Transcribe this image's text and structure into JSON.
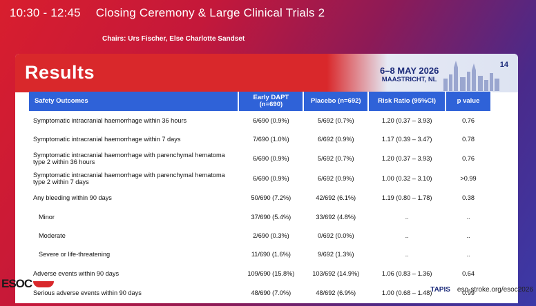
{
  "banner": {
    "time": "10:30 - 12:45",
    "session": "Closing Ceremony & Large Clinical Trials 2",
    "chairs": "Chairs: Urs Fischer, Else Charlotte Sandset"
  },
  "slide": {
    "title": "Results",
    "event_date": "6–8 MAY 2026",
    "event_place": "MAASTRICHT, NL",
    "number": "14"
  },
  "table": {
    "headers": [
      "Safety Outcomes",
      "Early DAPT (n=690)",
      "Placebo (n=692)",
      "Risk Ratio (95%CI)",
      "p value"
    ],
    "rows": [
      [
        "Symptomatic intracranial haemorrhage within 36 hours",
        "6/690 (0.9%)",
        "5/692 (0.7%)",
        "1.20 (0.37 – 3.93)",
        "0.76"
      ],
      [
        "Symptomatic intracranial haemorrhage within 7 days",
        "7/690 (1.0%)",
        "6/692 (0.9%)",
        "1.17 (0.39 – 3.47)",
        "0.78"
      ],
      [
        "Symptomatic intracranial haemorrhage with parenchymal hematoma type 2 within 36 hours",
        "6/690 (0.9%)",
        "5/692 (0.7%)",
        "1.20 (0.37 – 3.93)",
        "0.76"
      ],
      [
        "Symptomatic intracranial haemorrhage with parenchymal hematoma type 2 within 7 days",
        "6/690 (0.9%)",
        "6/692 (0.9%)",
        "1.00 (0.32 – 3.10)",
        ">0.99"
      ],
      [
        "Any bleeding within 90 days",
        "50/690 (7.2%)",
        "42/692 (6.1%)",
        "1.19 (0.80 – 1.78)",
        "0.38"
      ],
      [
        "Minor",
        "37/690 (5.4%)",
        "33/692 (4.8%)",
        "..",
        ".."
      ],
      [
        "Moderate",
        "2/690 (0.3%)",
        "0/692 (0.0%)",
        "..",
        ".."
      ],
      [
        "Severe or life-threatening",
        "11/690 (1.6%)",
        "9/692 (1.3%)",
        "..",
        ".."
      ],
      [
        "Adverse events within 90 days",
        "109/690 (15.8%)",
        "103/692 (14.9%)",
        "1.06 (0.83 – 1.36)",
        "0.64"
      ],
      [
        "Serious adverse events within 90 days",
        "48/690 (7.0%)",
        "48/692 (6.9%)",
        "1.00 (0.68 – 1.48)",
        "0.99"
      ]
    ]
  },
  "footer": {
    "logo": "ESOC",
    "partner": "TAPIS",
    "url": "eso-stroke.org/esoc2026"
  }
}
